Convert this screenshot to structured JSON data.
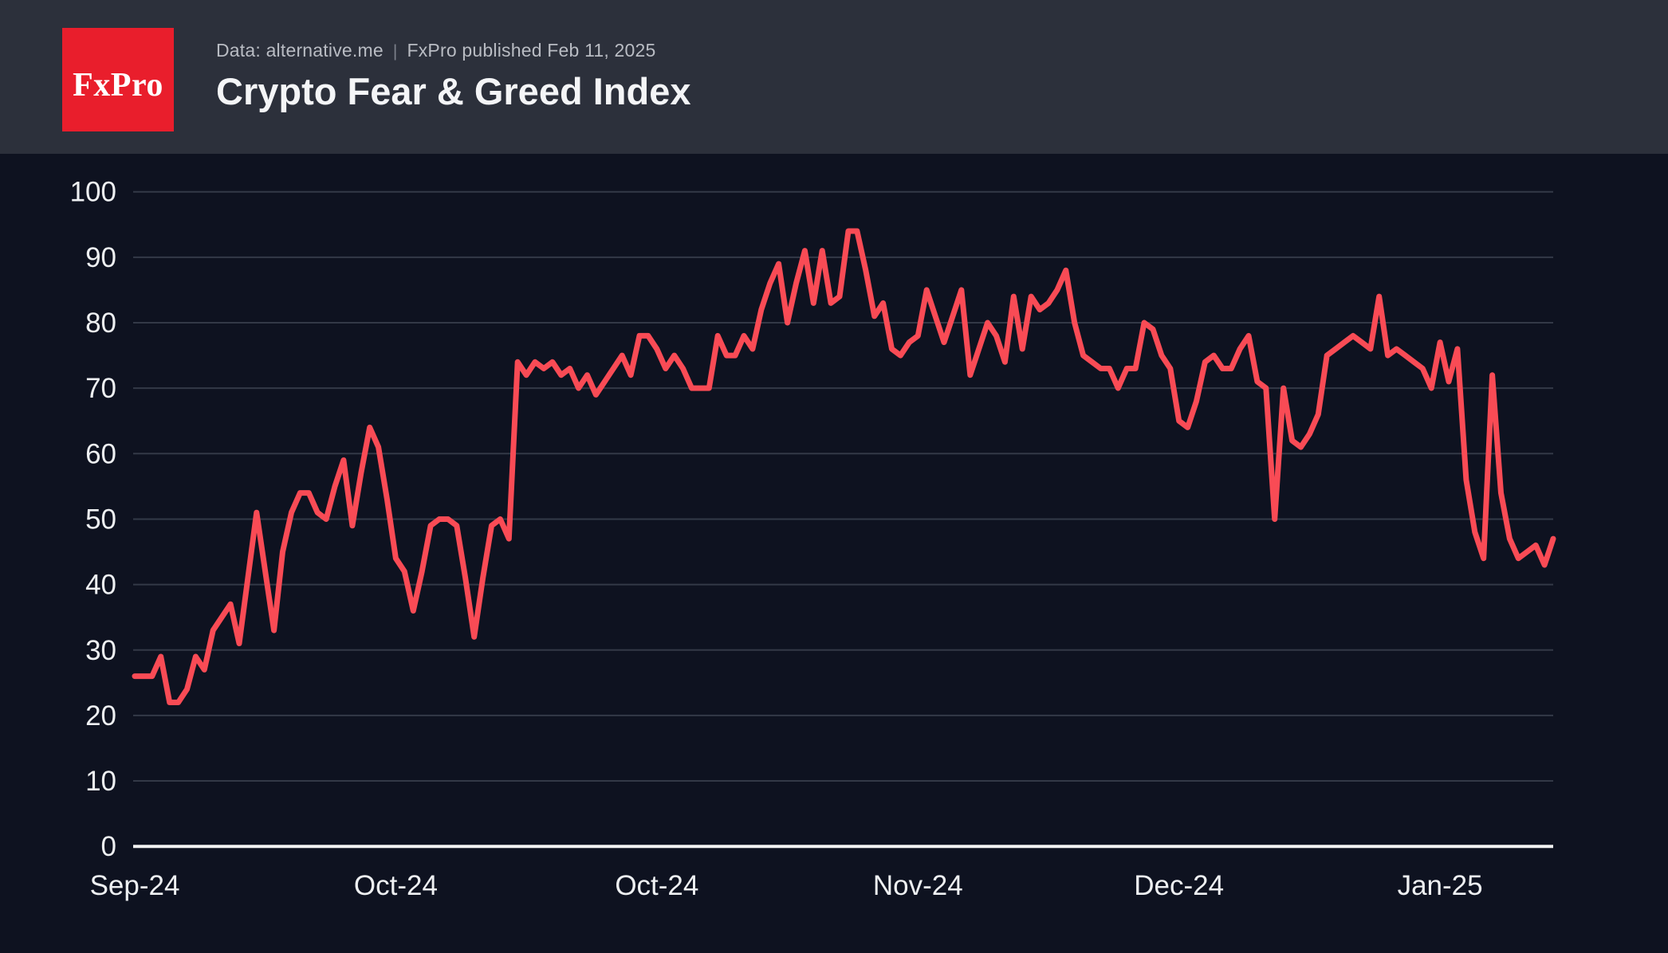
{
  "header": {
    "logo_text": "FxPro",
    "source_label": "Data: alternative.me",
    "separator": "|",
    "published_label": "FxPro published Feb 11, 2025",
    "title": "Crypto Fear & Greed Index"
  },
  "colors": {
    "header_bg": "#2c303b",
    "chart_bg": "#0e1220",
    "logo_bg": "#e91e2c",
    "logo_text": "#ffffff",
    "title_text": "#f4f5f7",
    "subtitle_text": "#b9bcc3",
    "line": "#f94b55",
    "grid": "#333947",
    "axis": "#f2f2f2",
    "tick_label": "#eef0f2"
  },
  "chart_data": {
    "type": "line",
    "title": "Crypto Fear & Greed Index",
    "source": "Data: alternative.me",
    "published": "FxPro published Feb 11, 2025",
    "x_start_date": "2024-09-01",
    "x_end_date": "2025-02-11",
    "x_unit": "day",
    "ylim": [
      0,
      100
    ],
    "y_ticks": [
      0,
      10,
      20,
      30,
      40,
      50,
      60,
      70,
      80,
      90,
      100
    ],
    "x_ticks": [
      {
        "day_offset": 0,
        "label": "Sep-24"
      },
      {
        "day_offset": 30,
        "label": "Oct-24"
      },
      {
        "day_offset": 60,
        "label": "Oct-24"
      },
      {
        "day_offset": 90,
        "label": "Nov-24"
      },
      {
        "day_offset": 120,
        "label": "Dec-24"
      },
      {
        "day_offset": 150,
        "label": "Jan-25"
      }
    ],
    "grid": "horizontal",
    "legend": "none",
    "line_color": "#f94b55",
    "series_name": "Crypto Fear & Greed Index",
    "values": [
      26,
      26,
      26,
      29,
      22,
      22,
      24,
      29,
      27,
      33,
      35,
      37,
      31,
      41,
      51,
      42,
      33,
      45,
      51,
      54,
      54,
      51,
      50,
      55,
      59,
      49,
      57,
      64,
      61,
      53,
      44,
      42,
      36,
      42,
      49,
      50,
      50,
      49,
      41,
      32,
      41,
      49,
      50,
      47,
      74,
      72,
      74,
      73,
      74,
      72,
      73,
      70,
      72,
      69,
      71,
      73,
      75,
      72,
      78,
      78,
      76,
      73,
      75,
      73,
      70,
      70,
      70,
      78,
      75,
      75,
      78,
      76,
      82,
      86,
      89,
      80,
      86,
      91,
      83,
      91,
      83,
      84,
      94,
      94,
      88,
      81,
      83,
      76,
      75,
      77,
      78,
      85,
      81,
      77,
      81,
      85,
      72,
      76,
      80,
      78,
      74,
      84,
      76,
      84,
      82,
      83,
      85,
      88,
      80,
      75,
      74,
      73,
      73,
      70,
      73,
      73,
      80,
      79,
      75,
      73,
      65,
      64,
      68,
      74,
      75,
      73,
      73,
      76,
      78,
      71,
      70,
      50,
      70,
      62,
      61,
      63,
      66,
      75,
      76,
      77,
      78,
      77,
      76,
      84,
      75,
      76,
      75,
      74,
      73,
      70,
      77,
      71,
      76,
      56,
      48,
      44,
      72,
      54,
      47,
      44,
      45,
      46,
      43,
      47
    ]
  }
}
